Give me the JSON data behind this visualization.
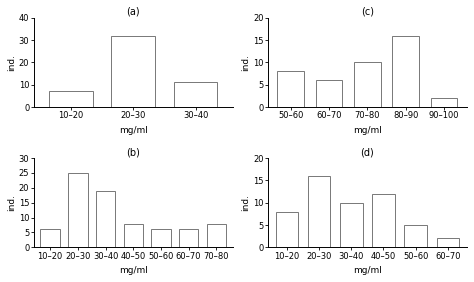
{
  "subplots": [
    {
      "label": "(a)",
      "categories": [
        "10–20",
        "20–30",
        "30–40"
      ],
      "values": [
        7,
        32,
        11
      ],
      "ylim": [
        0,
        40
      ],
      "yticks": [
        0,
        10,
        20,
        30,
        40
      ],
      "xlabel": "mg/ml",
      "ylabel": "ind."
    },
    {
      "label": "(c)",
      "categories": [
        "50–60",
        "60–70",
        "70–80",
        "80–90",
        "90–100"
      ],
      "values": [
        8,
        6,
        10,
        16,
        2
      ],
      "ylim": [
        0,
        20
      ],
      "yticks": [
        0,
        5,
        10,
        15,
        20
      ],
      "xlabel": "mg/ml",
      "ylabel": "ind."
    },
    {
      "label": "(b)",
      "categories": [
        "10–20",
        "20–30",
        "30–40",
        "40–50",
        "50–60",
        "60–70",
        "70–80"
      ],
      "values": [
        6,
        25,
        19,
        8,
        6,
        6,
        8
      ],
      "ylim": [
        0,
        30
      ],
      "yticks": [
        0,
        5,
        10,
        15,
        20,
        25,
        30
      ],
      "xlabel": "mg/ml",
      "ylabel": "ind."
    },
    {
      "label": "(d)",
      "categories": [
        "10–20",
        "20–30",
        "30–40",
        "40–50",
        "50–60",
        "60–70"
      ],
      "values": [
        8,
        16,
        10,
        12,
        5,
        2
      ],
      "ylim": [
        0,
        20
      ],
      "yticks": [
        0,
        5,
        10,
        15,
        20
      ],
      "xlabel": "mg/ml",
      "ylabel": "ind."
    }
  ],
  "bar_color": "white",
  "bar_edgecolor": "#777777",
  "background_color": "white",
  "fig_background": "white"
}
